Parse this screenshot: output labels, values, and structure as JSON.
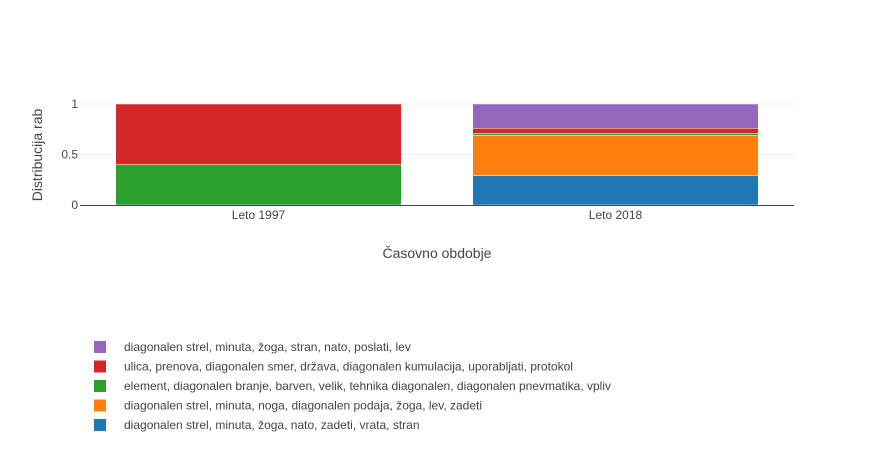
{
  "chart_data": {
    "type": "bar",
    "stacked": true,
    "categories": [
      "Leto 1997",
      "Leto 2018"
    ],
    "xlabel": "Časovno obdobje",
    "ylabel": "Distribucija rab",
    "ylim": [
      0,
      1
    ],
    "yticks": [
      0,
      0.5,
      1
    ],
    "ytick_labels": [
      "0",
      "0.5",
      "1"
    ],
    "grid": true,
    "legend_position": "bottom-left",
    "series": [
      {
        "name": "diagonalen strel, minuta, žoga, nato, zadeti, vrata, stran",
        "color": "#1f77b4",
        "values": [
          0,
          0.29
        ]
      },
      {
        "name": "diagonalen strel, minuta, noga, diagonalen podaja, žoga, lev, zadeti",
        "color": "#ff7f0e",
        "values": [
          0,
          0.4
        ]
      },
      {
        "name": "element, diagonalen branje, barven, velik, tehnika diagonalen, diagonalen pnevmatika, vpliv",
        "color": "#2ca02c",
        "values": [
          0.4,
          0.02
        ]
      },
      {
        "name": "ulica, prenova, diagonalen smer, država, diagonalen kumulacija, uporabljati, protokol",
        "color": "#d62728",
        "values": [
          0.6,
          0.05
        ]
      },
      {
        "name": "diagonalen strel, minuta, žoga, stran, nato, poslati, lev",
        "color": "#9467bd",
        "values": [
          0,
          0.24
        ]
      }
    ]
  }
}
